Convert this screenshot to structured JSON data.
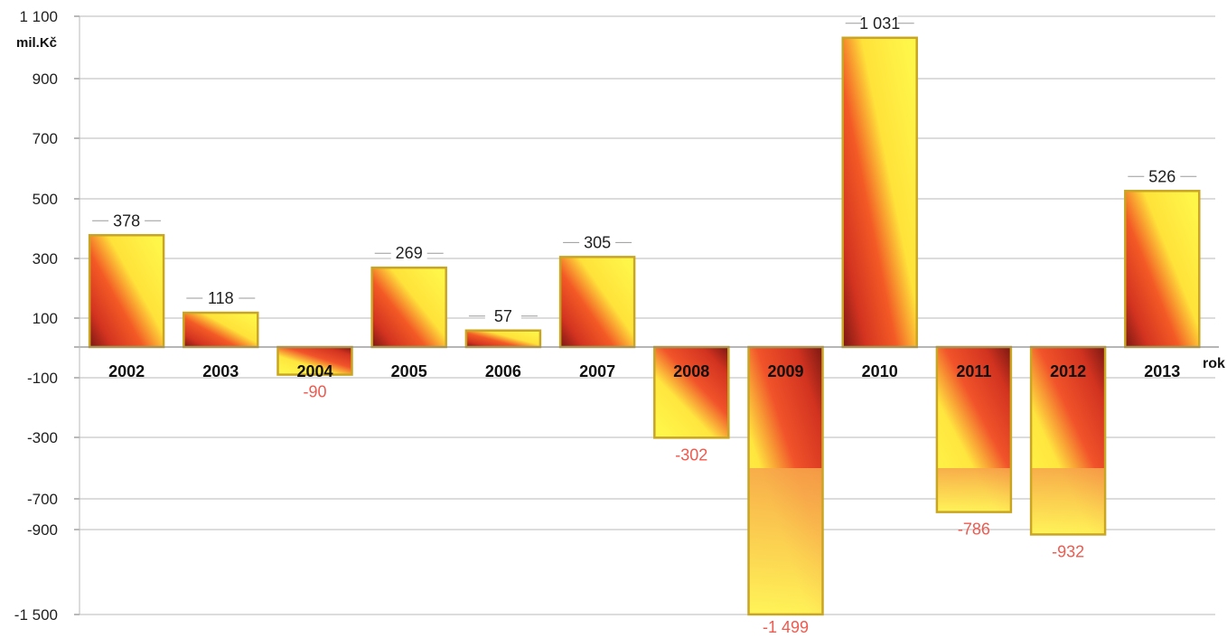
{
  "chart_data": {
    "type": "bar",
    "categories": [
      "2002",
      "2003",
      "2004",
      "2005",
      "2006",
      "2007",
      "2008",
      "2009",
      "2010",
      "2011",
      "2012",
      "2013"
    ],
    "values": [
      378,
      118,
      -90,
      269,
      57,
      305,
      -302,
      -1499,
      1031,
      -786,
      -932,
      526
    ],
    "value_labels": [
      "378",
      "118",
      "-90",
      "269",
      "57",
      "305",
      "-302",
      "-1 499",
      "1 031",
      "-786",
      "-932",
      "526"
    ],
    "y_ticks": [
      1100,
      900,
      700,
      500,
      300,
      100,
      -100,
      -300,
      -700,
      -900,
      -1500
    ],
    "y_tick_labels": [
      "1 100",
      "900",
      "700",
      "500",
      "300",
      "100",
      "-100",
      "-300",
      "-700",
      "-900",
      "-1 500"
    ],
    "y_unit_label": "mil.Kč",
    "x_unit_label": "rok",
    "ylim": [
      -1500,
      1100
    ],
    "y_axis_break": {
      "from": -500,
      "to": -1300
    },
    "grid": true,
    "colors": {
      "positive_bar": [
        "#c43018",
        "#fff337"
      ],
      "negative_bar": [
        "#e63a22",
        "#fff337"
      ],
      "outline": "#c9a524",
      "positive_label": "#1f1f1f",
      "negative_label": "#ef5a4f",
      "grid": "#b9b9b9"
    }
  }
}
